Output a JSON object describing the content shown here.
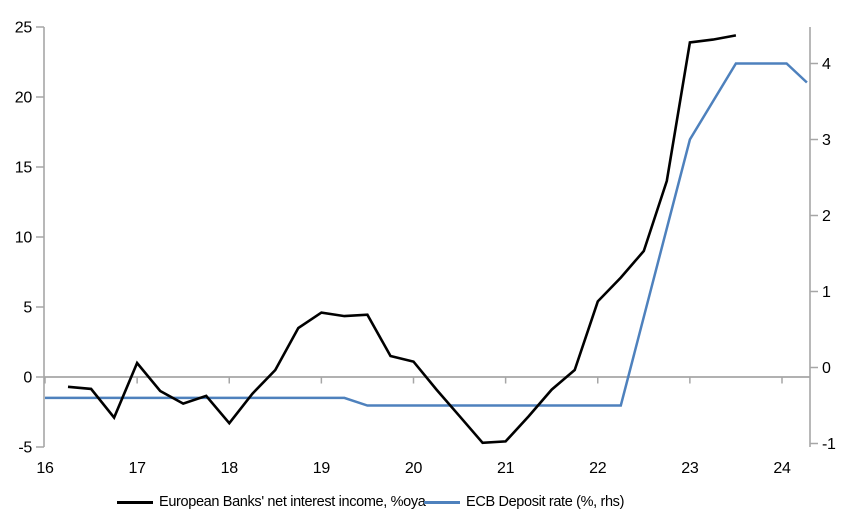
{
  "chart_data": {
    "type": "line",
    "title": "",
    "x_axis": {
      "tick_values": [
        16,
        17,
        18,
        19,
        20,
        21,
        22,
        23,
        24
      ],
      "tick_labels": [
        "16",
        "17",
        "18",
        "19",
        "20",
        "21",
        "22",
        "23",
        "24"
      ],
      "range": [
        16,
        24.3
      ]
    },
    "left_axis": {
      "tick_values": [
        25,
        20,
        15,
        10,
        5,
        0,
        -5
      ],
      "tick_labels": [
        "25",
        "20",
        "15",
        "10",
        "5",
        "0",
        "-5"
      ],
      "range": [
        -5,
        25
      ]
    },
    "right_axis": {
      "tick_values": [
        4,
        3,
        2,
        1,
        0,
        -1
      ],
      "tick_labels": [
        "4",
        "3",
        "2",
        "1",
        "0",
        "-1"
      ],
      "range": [
        -1.05,
        4.48
      ]
    },
    "grid": "zero-line-only",
    "legend_position": "bottom",
    "series": [
      {
        "name": "European Banks' net interest income, %oya",
        "axis": "left",
        "color": "#000000",
        "x": [
          16.25,
          16.5,
          16.75,
          17.0,
          17.25,
          17.5,
          17.75,
          18.0,
          18.25,
          18.5,
          18.75,
          19.0,
          19.25,
          19.5,
          19.75,
          20.0,
          20.25,
          20.5,
          20.75,
          21.0,
          21.25,
          21.5,
          21.75,
          22.0,
          22.25,
          22.5,
          22.75,
          23.0,
          23.25,
          23.5
        ],
        "values": [
          -0.7,
          -0.85,
          -2.9,
          1.0,
          -1.0,
          -1.9,
          -1.35,
          -3.3,
          -1.2,
          0.5,
          3.5,
          4.6,
          4.35,
          4.45,
          1.5,
          1.1,
          -0.9,
          -2.8,
          -4.7,
          -4.6,
          -2.8,
          -0.9,
          0.5,
          5.4,
          7.1,
          9.0,
          14.0,
          23.9,
          24.1,
          24.4
        ]
      },
      {
        "name": "ECB Deposit rate (%, rhs)",
        "axis": "right",
        "color": "#4E81BD",
        "x": [
          16.0,
          19.25,
          19.5,
          22.25,
          23.0,
          23.5,
          24.05,
          24.27
        ],
        "values": [
          -0.4,
          -0.4,
          -0.5,
          -0.5,
          3.0,
          4.0,
          4.0,
          3.75
        ]
      }
    ]
  },
  "colors": {
    "axis_gray": "#A6A6A6",
    "text": "#000000",
    "nii_line": "#000000",
    "ecb_line": "#4E81BD"
  }
}
